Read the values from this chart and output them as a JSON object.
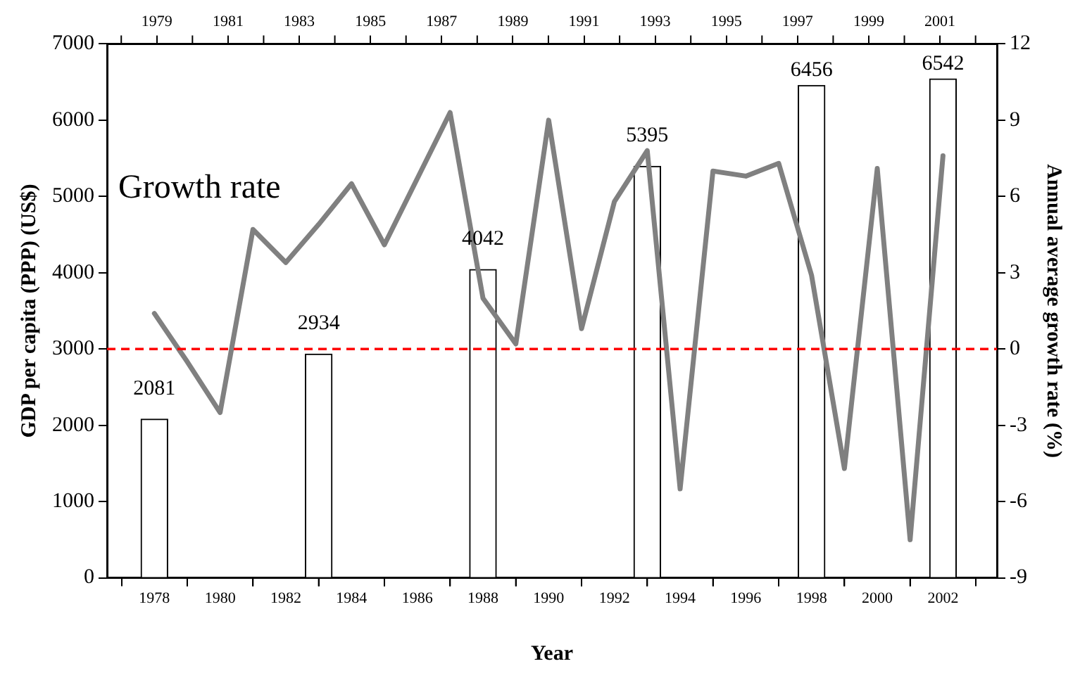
{
  "chart_data": {
    "type": "bar",
    "xlabel": "Year",
    "ylabel": "GDP per capita (PPP) (US$)",
    "y2label": "Annual average growth rate (%)",
    "x": [
      1978,
      1983,
      1988,
      1993,
      1998,
      2002
    ],
    "series": [
      {
        "color": "#ffffff",
        "values": [
          2081,
          2934,
          4042,
          5395,
          6456,
          6542
        ],
        "value_labels": [
          "2081",
          "2934",
          "4042",
          "5395",
          "6456",
          "6542"
        ]
      },
      {
        "type": "line",
        "name": "Growth rate",
        "axis": "y2",
        "color": "#808080",
        "x": [
          1978,
          1979,
          1980,
          1981,
          1982,
          1983,
          1984,
          1985,
          1986,
          1987,
          1988,
          1989,
          1990,
          1991,
          1992,
          1993,
          1994,
          1995,
          1996,
          1997,
          1998,
          1999,
          2000,
          2001,
          2002
        ],
        "values": [
          1.4,
          -0.5,
          -2.5,
          4.7,
          3.4,
          4.9,
          6.5,
          4.1,
          6.7,
          9.3,
          2.0,
          0.2,
          9.0,
          0.8,
          5.8,
          7.8,
          -5.5,
          7.0,
          6.8,
          7.3,
          2.9,
          -4.7,
          7.1,
          -7.5,
          7.6
        ]
      }
    ],
    "xlim": [
      1977.6,
      2002.6
    ],
    "xticks": [
      1978,
      {
        "value": 1979,
        "label": null
      },
      1980,
      {
        "value": 1981,
        "label": null
      },
      1982,
      {
        "value": 1983,
        "label": null
      },
      1984,
      {
        "value": 1985,
        "label": null
      },
      1986,
      {
        "value": 1987,
        "label": null
      },
      1988,
      {
        "value": 1989,
        "label": null
      },
      1990,
      {
        "value": 1991,
        "label": null
      },
      1992,
      {
        "value": 1993,
        "label": null
      },
      1994,
      {
        "value": 1995,
        "label": null
      },
      1996,
      {
        "value": 1997,
        "label": null
      },
      1998,
      {
        "value": 1999,
        "label": null
      },
      2000,
      {
        "value": 2001,
        "label": null
      },
      2002
    ],
    "x2lim": [
      1977.6,
      2002.6
    ],
    "x2ticks": [
      {
        "value": 1978,
        "label": null
      },
      1979,
      {
        "value": 1980,
        "label": null
      },
      1981,
      {
        "value": 1982,
        "label": null
      },
      1983,
      {
        "value": 1984,
        "label": null
      },
      1985,
      {
        "value": 1986,
        "label": null
      },
      1987,
      {
        "value": 1988,
        "label": null
      },
      1989,
      {
        "value": 1990,
        "label": null
      },
      1991,
      {
        "value": 1992,
        "label": null
      },
      1993,
      {
        "value": 1994,
        "label": null
      },
      1995,
      {
        "value": 1996,
        "label": null
      },
      1997,
      {
        "value": 1998,
        "label": null
      },
      1999,
      {
        "value": 2000,
        "label": null
      },
      2001,
      {
        "value": 2002,
        "label": null
      }
    ],
    "ylim": [
      0,
      7000
    ],
    "yticks": [
      0,
      1000,
      2000,
      3000,
      4000,
      5000,
      6000,
      7000
    ],
    "y2lim": [
      -9,
      12
    ],
    "y2ticks": [
      -9,
      -6,
      -3,
      0,
      3,
      6,
      9,
      12
    ],
    "ref_lines": [
      {
        "axis": "y2",
        "value": 0,
        "color": "#ff0000",
        "line_style": "dashed"
      }
    ],
    "grid": false,
    "legend": false,
    "line_style": "solid",
    "marker": "none"
  }
}
